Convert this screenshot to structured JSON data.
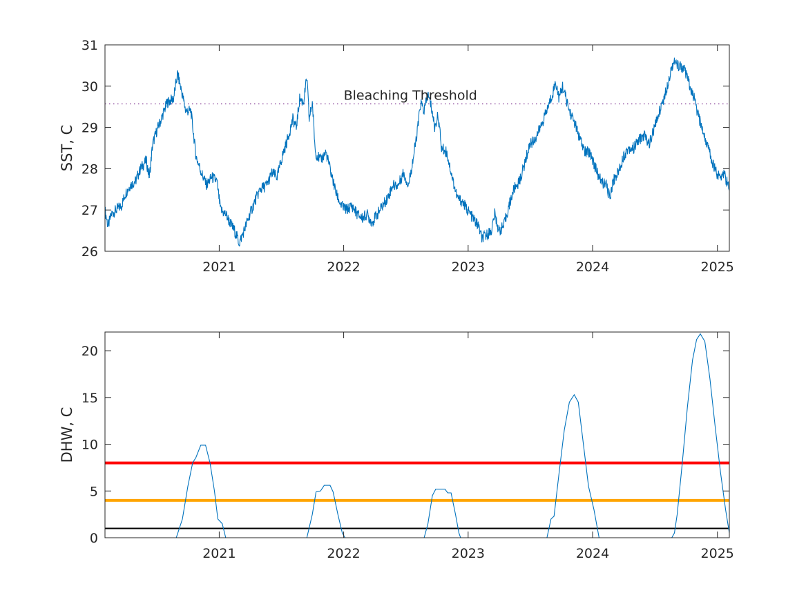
{
  "chart_data": [
    {
      "type": "line",
      "ylabel": "SST, C",
      "xlim": [
        "2020-02-01",
        "2025-02-05"
      ],
      "ylim": [
        26,
        31
      ],
      "xticks": [
        "2021",
        "2022",
        "2023",
        "2024",
        "2025"
      ],
      "yticks": [
        26,
        27,
        28,
        29,
        30,
        31
      ],
      "grid": false,
      "threshold": {
        "label": "Bleaching Threshold",
        "value": 29.57,
        "color": "#7e2f8e",
        "style": "dotted"
      },
      "series": [
        {
          "color": "#0072bd",
          "points": [
            [
              "2020-02-01",
              27.0
            ],
            [
              "2020-02-10",
              26.6
            ],
            [
              "2020-02-20",
              26.9
            ],
            [
              "2020-03-05",
              27.0
            ],
            [
              "2020-03-20",
              27.1
            ],
            [
              "2020-04-01",
              27.4
            ],
            [
              "2020-04-15",
              27.6
            ],
            [
              "2020-05-01",
              27.7
            ],
            [
              "2020-05-15",
              28.0
            ],
            [
              "2020-06-01",
              28.2
            ],
            [
              "2020-06-10",
              27.8
            ],
            [
              "2020-06-20",
              28.6
            ],
            [
              "2020-07-01",
              28.9
            ],
            [
              "2020-07-15",
              29.2
            ],
            [
              "2020-08-01",
              29.6
            ],
            [
              "2020-08-20",
              29.7
            ],
            [
              "2020-09-01",
              30.3
            ],
            [
              "2020-09-12",
              29.9
            ],
            [
              "2020-09-25",
              29.4
            ],
            [
              "2020-10-10",
              29.4
            ],
            [
              "2020-10-25",
              28.3
            ],
            [
              "2020-11-10",
              27.9
            ],
            [
              "2020-11-25",
              27.6
            ],
            [
              "2020-12-10",
              27.8
            ],
            [
              "2020-12-25",
              27.7
            ],
            [
              "2021-01-05",
              27.0
            ],
            [
              "2021-01-20",
              26.9
            ],
            [
              "2021-02-01",
              26.7
            ],
            [
              "2021-02-15",
              26.5
            ],
            [
              "2021-03-01",
              26.2
            ],
            [
              "2021-03-15",
              26.5
            ],
            [
              "2021-04-01",
              26.9
            ],
            [
              "2021-04-15",
              27.2
            ],
            [
              "2021-05-01",
              27.5
            ],
            [
              "2021-05-20",
              27.6
            ],
            [
              "2021-06-05",
              27.9
            ],
            [
              "2021-06-20",
              27.8
            ],
            [
              "2021-07-05",
              28.3
            ],
            [
              "2021-07-20",
              28.7
            ],
            [
              "2021-08-05",
              29.2
            ],
            [
              "2021-08-15",
              29.0
            ],
            [
              "2021-08-25",
              29.7
            ],
            [
              "2021-09-05",
              29.6
            ],
            [
              "2021-09-15",
              30.2
            ],
            [
              "2021-09-22",
              29.2
            ],
            [
              "2021-10-01",
              29.6
            ],
            [
              "2021-10-10",
              28.4
            ],
            [
              "2021-10-25",
              28.2
            ],
            [
              "2021-11-10",
              28.4
            ],
            [
              "2021-11-25",
              27.9
            ],
            [
              "2021-12-10",
              27.4
            ],
            [
              "2021-12-25",
              27.1
            ],
            [
              "2022-01-10",
              27.0
            ],
            [
              "2022-01-25",
              27.1
            ],
            [
              "2022-02-10",
              26.9
            ],
            [
              "2022-02-25",
              26.8
            ],
            [
              "2022-03-10",
              26.9
            ],
            [
              "2022-03-25",
              26.7
            ],
            [
              "2022-04-10",
              26.9
            ],
            [
              "2022-04-25",
              27.1
            ],
            [
              "2022-05-10",
              27.3
            ],
            [
              "2022-05-25",
              27.6
            ],
            [
              "2022-06-10",
              27.6
            ],
            [
              "2022-06-25",
              27.9
            ],
            [
              "2022-07-10",
              27.6
            ],
            [
              "2022-07-25",
              28.3
            ],
            [
              "2022-08-05",
              28.9
            ],
            [
              "2022-08-15",
              29.6
            ],
            [
              "2022-08-25",
              29.4
            ],
            [
              "2022-09-05",
              29.8
            ],
            [
              "2022-09-15",
              29.5
            ],
            [
              "2022-09-25",
              29.0
            ],
            [
              "2022-10-05",
              29.3
            ],
            [
              "2022-10-15",
              28.5
            ],
            [
              "2022-10-30",
              28.4
            ],
            [
              "2022-11-15",
              27.8
            ],
            [
              "2022-11-30",
              27.3
            ],
            [
              "2022-12-15",
              27.2
            ],
            [
              "2022-12-30",
              27.0
            ],
            [
              "2023-01-15",
              26.8
            ],
            [
              "2023-02-01",
              26.6
            ],
            [
              "2023-02-10",
              26.3
            ],
            [
              "2023-02-25",
              26.4
            ],
            [
              "2023-03-10",
              26.5
            ],
            [
              "2023-03-20",
              26.9
            ],
            [
              "2023-04-01",
              26.5
            ],
            [
              "2023-04-15",
              26.6
            ],
            [
              "2023-05-01",
              27.1
            ],
            [
              "2023-05-15",
              27.5
            ],
            [
              "2023-06-01",
              27.7
            ],
            [
              "2023-06-15",
              28.1
            ],
            [
              "2023-07-01",
              28.6
            ],
            [
              "2023-07-15",
              28.7
            ],
            [
              "2023-08-01",
              29.0
            ],
            [
              "2023-08-15",
              29.3
            ],
            [
              "2023-09-01",
              29.7
            ],
            [
              "2023-09-15",
              30.1
            ],
            [
              "2023-09-25",
              29.7
            ],
            [
              "2023-10-05",
              30.0
            ],
            [
              "2023-10-15",
              29.7
            ],
            [
              "2023-10-25",
              29.4
            ],
            [
              "2023-11-10",
              29.1
            ],
            [
              "2023-11-25",
              28.7
            ],
            [
              "2023-12-10",
              28.4
            ],
            [
              "2023-12-25",
              28.4
            ],
            [
              "2024-01-10",
              28.0
            ],
            [
              "2024-01-25",
              27.7
            ],
            [
              "2024-02-10",
              27.6
            ],
            [
              "2024-02-20",
              27.3
            ],
            [
              "2024-03-01",
              27.7
            ],
            [
              "2024-03-15",
              27.9
            ],
            [
              "2024-04-01",
              28.3
            ],
            [
              "2024-04-15",
              28.5
            ],
            [
              "2024-05-01",
              28.5
            ],
            [
              "2024-05-15",
              28.7
            ],
            [
              "2024-06-01",
              28.8
            ],
            [
              "2024-06-15",
              28.6
            ],
            [
              "2024-07-01",
              29.0
            ],
            [
              "2024-07-15",
              29.4
            ],
            [
              "2024-08-01",
              29.8
            ],
            [
              "2024-08-15",
              30.3
            ],
            [
              "2024-08-25",
              30.6
            ],
            [
              "2024-09-05",
              30.5
            ],
            [
              "2024-09-15",
              30.5
            ],
            [
              "2024-09-25",
              30.4
            ],
            [
              "2024-10-05",
              30.2
            ],
            [
              "2024-10-15",
              29.9
            ],
            [
              "2024-10-25",
              29.7
            ],
            [
              "2024-11-05",
              29.3
            ],
            [
              "2024-11-20",
              28.9
            ],
            [
              "2024-12-05",
              28.5
            ],
            [
              "2024-12-20",
              28.1
            ],
            [
              "2025-01-05",
              27.8
            ],
            [
              "2025-01-20",
              27.9
            ],
            [
              "2025-02-05",
              27.5
            ]
          ]
        }
      ]
    },
    {
      "type": "line",
      "ylabel": "DHW, C",
      "xlim": [
        "2020-02-01",
        "2025-02-05"
      ],
      "ylim": [
        0,
        22
      ],
      "xticks": [
        "2021",
        "2022",
        "2023",
        "2024",
        "2025"
      ],
      "yticks": [
        0,
        5,
        10,
        15,
        20
      ],
      "grid": false,
      "reference_lines": [
        {
          "value": 8,
          "color": "#ff0000"
        },
        {
          "value": 4,
          "color": "#ffa500"
        },
        {
          "value": 1,
          "color": "#000000"
        }
      ],
      "series": [
        {
          "color": "#0072bd",
          "points": [
            [
              "2020-02-01",
              0
            ],
            [
              "2020-08-28",
              0
            ],
            [
              "2020-09-15",
              2.0
            ],
            [
              "2020-10-01",
              5.5
            ],
            [
              "2020-10-15",
              8.0
            ],
            [
              "2020-10-25",
              8.6
            ],
            [
              "2020-11-08",
              9.9
            ],
            [
              "2020-11-22",
              9.9
            ],
            [
              "2020-12-05",
              8.0
            ],
            [
              "2020-12-18",
              5.0
            ],
            [
              "2020-12-28",
              2.0
            ],
            [
              "2021-01-10",
              1.5
            ],
            [
              "2021-01-20",
              0
            ],
            [
              "2021-09-15",
              0
            ],
            [
              "2021-10-01",
              2.5
            ],
            [
              "2021-10-12",
              4.9
            ],
            [
              "2021-10-25",
              5.0
            ],
            [
              "2021-11-05",
              5.6
            ],
            [
              "2021-11-22",
              5.6
            ],
            [
              "2021-12-01",
              4.9
            ],
            [
              "2021-12-15",
              2.5
            ],
            [
              "2021-12-28",
              0.5
            ],
            [
              "2022-01-05",
              0
            ],
            [
              "2022-08-25",
              0
            ],
            [
              "2022-09-05",
              1.5
            ],
            [
              "2022-09-18",
              4.5
            ],
            [
              "2022-09-28",
              5.2
            ],
            [
              "2022-10-25",
              5.2
            ],
            [
              "2022-11-02",
              4.8
            ],
            [
              "2022-11-12",
              4.8
            ],
            [
              "2022-11-25",
              2.5
            ],
            [
              "2022-12-05",
              0.5
            ],
            [
              "2022-12-10",
              0
            ],
            [
              "2023-08-20",
              0
            ],
            [
              "2023-09-01",
              2.0
            ],
            [
              "2023-09-10",
              2.3
            ],
            [
              "2023-09-25",
              7.0
            ],
            [
              "2023-10-10",
              11.5
            ],
            [
              "2023-10-25",
              14.5
            ],
            [
              "2023-11-08",
              15.3
            ],
            [
              "2023-11-20",
              14.5
            ],
            [
              "2023-12-05",
              10.0
            ],
            [
              "2023-12-20",
              5.5
            ],
            [
              "2024-01-05",
              3.0
            ],
            [
              "2024-01-20",
              0
            ],
            [
              "2024-08-20",
              0
            ],
            [
              "2024-08-28",
              0.5
            ],
            [
              "2024-09-05",
              2.5
            ],
            [
              "2024-09-20",
              8.0
            ],
            [
              "2024-10-05",
              14.0
            ],
            [
              "2024-10-20",
              19.0
            ],
            [
              "2024-11-01",
              21.2
            ],
            [
              "2024-11-12",
              21.8
            ],
            [
              "2024-11-25",
              21.0
            ],
            [
              "2024-12-10",
              17.0
            ],
            [
              "2024-12-25",
              12.0
            ],
            [
              "2025-01-10",
              7.0
            ],
            [
              "2025-01-25",
              3.0
            ],
            [
              "2025-02-05",
              0.5
            ]
          ]
        }
      ]
    }
  ]
}
